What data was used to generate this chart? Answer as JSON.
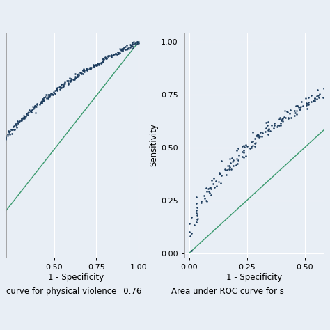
{
  "background_color": "#e8eef5",
  "plot_bg_color": "#e8eef5",
  "roc_color": "#1a3a5c",
  "diag_color": "#3a9a6e",
  "ylabel": "Sensitivity",
  "xlabel": "1 - Specificity",
  "caption_left": "curve for physical violence=0.76",
  "caption_right": "Area under ROC curve for s",
  "xticks_left": [
    0.5,
    0.75,
    1.0
  ],
  "xticks_right": [
    0.0,
    0.25,
    0.5
  ],
  "yticks_right": [
    0.0,
    0.25,
    0.5,
    0.75,
    1.0
  ],
  "marker_size": 3.5,
  "diag_linewidth": 1.0,
  "tick_fontsize": 8,
  "label_fontsize": 8.5,
  "caption_fontsize": 8.5,
  "n_points": 300
}
